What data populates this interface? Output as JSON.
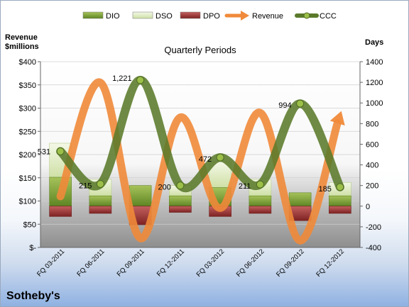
{
  "chart_data": {
    "type": "bar",
    "title": "Quarterly Periods",
    "company": "Sotheby's",
    "ylabel_left": "Revenue $millions",
    "ylabel_right": "Days",
    "left_axis": {
      "min": 0,
      "max": 400,
      "step": 50,
      "tick_labels": [
        "$-",
        "$50",
        "$100",
        "$150",
        "$200",
        "$250",
        "$300",
        "$350",
        "$400"
      ]
    },
    "right_axis": {
      "min": -400,
      "max": 1400,
      "step": 200,
      "tick_labels": [
        "-400",
        "-200",
        "0",
        "200",
        "400",
        "600",
        "800",
        "1000",
        "1200",
        "1400"
      ]
    },
    "categories": [
      "FQ 03-2011",
      "FQ 06-2011",
      "FQ 09-2011",
      "FQ 12-2011",
      "FQ 03-2012",
      "FQ 06-2012",
      "FQ 09-2012",
      "FQ 12-2012"
    ],
    "legend": [
      {
        "name": "DIO",
        "kind": "bar",
        "color": "#7fa040"
      },
      {
        "name": "DSO",
        "kind": "bar",
        "color": "#e4efcf"
      },
      {
        "name": "DPO",
        "kind": "bar",
        "color": "#a33a3a"
      },
      {
        "name": "Revenue",
        "kind": "arrow",
        "color": "#f08a3a"
      },
      {
        "name": "CCC",
        "kind": "line",
        "color": "#5a7a2a"
      }
    ],
    "legend_position": "top",
    "series": [
      {
        "name": "DIO",
        "axis": "right",
        "values": [
          280,
          100,
          200,
          100,
          180,
          100,
          130,
          100
        ]
      },
      {
        "name": "DSO",
        "axis": "right",
        "values": [
          330,
          160,
          0,
          100,
          250,
          160,
          0,
          130
        ]
      },
      {
        "name": "DPO",
        "axis": "right",
        "values": [
          -100,
          -70,
          -180,
          -60,
          -100,
          -70,
          -140,
          -70
        ]
      },
      {
        "name": "Revenue",
        "axis": "left",
        "values": [
          110,
          355,
          20,
          280,
          85,
          290,
          15,
          285
        ]
      },
      {
        "name": "CCC",
        "axis": "right",
        "values": [
          531,
          215,
          1221,
          200,
          472,
          211,
          994,
          185
        ],
        "data_labels": [
          "531",
          "215",
          "1,221",
          "200",
          "472",
          "211",
          "994",
          "185"
        ]
      }
    ]
  }
}
